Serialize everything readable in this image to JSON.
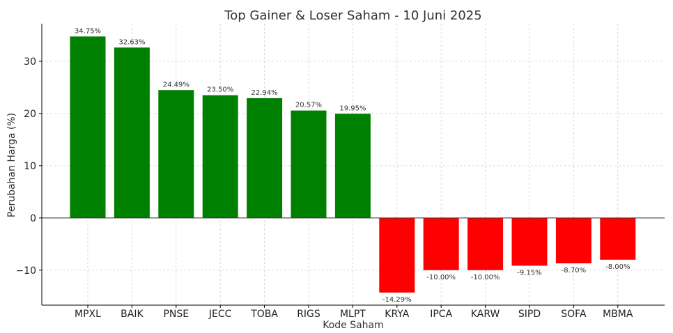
{
  "chart_data": {
    "type": "bar",
    "title": "Top Gainer & Loser Saham - 10 Juni 2025",
    "xlabel": "Kode Saham",
    "ylabel": "Perubahan Harga (%)",
    "categories": [
      "MPXL",
      "BAIK",
      "PNSE",
      "JECC",
      "TOBA",
      "RIGS",
      "MLPT",
      "KRYA",
      "IPCA",
      "KARW",
      "SIPD",
      "SOFA",
      "MBMA"
    ],
    "values": [
      34.75,
      32.63,
      24.49,
      23.5,
      22.94,
      20.57,
      19.95,
      -14.29,
      -10.0,
      -10.0,
      -9.15,
      -8.7,
      -8.0
    ],
    "data_labels": [
      "34.75%",
      "32.63%",
      "24.49%",
      "23.50%",
      "22.94%",
      "20.57%",
      "19.95%",
      "-14.29%",
      "-10.00%",
      "-10.00%",
      "-9.15%",
      "-8.70%",
      "-8.00%"
    ],
    "yticks": [
      -10,
      0,
      10,
      20,
      30
    ],
    "ytick_labels": [
      "−10",
      "0",
      "10",
      "20",
      "30"
    ],
    "ylim": [
      -16.7,
      37.2
    ],
    "grid": true,
    "colors": {
      "positive": "#008000",
      "negative": "#ff0000",
      "grid": "#d0d0d0",
      "axis": "#000000"
    }
  }
}
